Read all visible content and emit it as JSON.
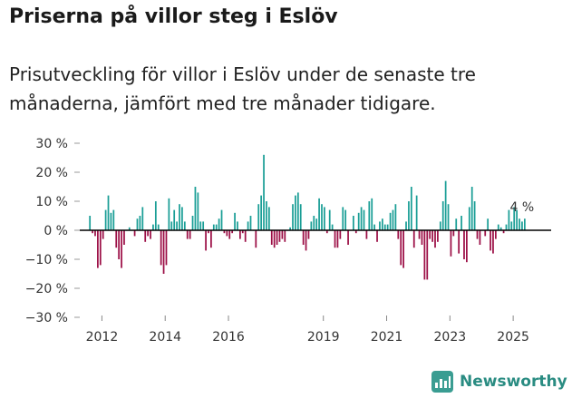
{
  "title": "Priserna på villor steg i Eslöv",
  "subtitle": "Prisutveckling för villor i Eslöv under de senaste tre månaderna, jämfört med tre månader tidigare.",
  "brand": "Newsworthy",
  "colors": {
    "positive": "#1a9e96",
    "negative": "#9c0f46",
    "axis": "#000000"
  },
  "chart_data": {
    "type": "bar",
    "unit": "%",
    "ylim": [
      -30,
      30
    ],
    "yticks": [
      30,
      20,
      10,
      0,
      -10,
      -20,
      -30
    ],
    "ytick_labels": [
      "30 %",
      "20 %",
      "10 %",
      "0 %",
      "−10 %",
      "−20 %",
      "−30 %"
    ],
    "x_start": 2011.62,
    "x_step": 0.0833,
    "xticks": [
      2012,
      2014,
      2016,
      2019,
      2021,
      2023,
      2025
    ],
    "xtick_labels": [
      "2012",
      "2014",
      "2016",
      "2019",
      "2021",
      "2023",
      "2025"
    ],
    "annotation": "4 %",
    "values": [
      5,
      -1,
      -2,
      -13,
      -12,
      -3,
      7,
      12,
      6,
      7,
      -6,
      -10,
      -13,
      -5,
      0,
      1,
      0,
      -2,
      4,
      5,
      8,
      -4,
      -2,
      -3,
      2,
      10,
      2,
      -12,
      -15,
      -12,
      11,
      3,
      7,
      3,
      9,
      8,
      3,
      -3,
      -3,
      5,
      15,
      13,
      3,
      3,
      -7,
      -1,
      -6,
      2,
      2,
      4,
      7,
      -1,
      -2,
      -3,
      -1,
      6,
      3,
      -3,
      -1,
      -4,
      3,
      5,
      0,
      -6,
      9,
      12,
      26,
      10,
      8,
      -5,
      -6,
      -5,
      -4,
      -3,
      -4,
      0,
      1,
      9,
      12,
      13,
      9,
      -5,
      -7,
      -3,
      3,
      5,
      4,
      11,
      9,
      8,
      -1,
      7,
      2,
      -6,
      -6,
      -3,
      8,
      7,
      -5,
      0,
      5,
      -1,
      6,
      8,
      7,
      -3,
      10,
      11,
      2,
      -4,
      3,
      4,
      2,
      2,
      6,
      7,
      9,
      -3,
      -12,
      -13,
      3,
      10,
      15,
      -6,
      12,
      -3,
      -5,
      -17,
      -17,
      -3,
      -4,
      -6,
      -4,
      3,
      10,
      17,
      9,
      -9,
      -2,
      4,
      -8,
      5,
      -10,
      -11,
      8,
      15,
      10,
      -3,
      -5,
      0,
      -2,
      4,
      -7,
      -8,
      -3,
      2,
      1,
      -1,
      2,
      7,
      3,
      8,
      7,
      4,
      3,
      4
    ]
  }
}
